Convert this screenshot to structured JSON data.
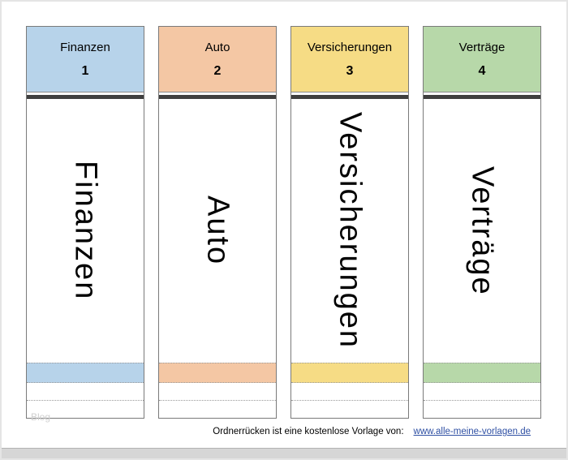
{
  "page": {
    "watermark": "Blog",
    "footer": {
      "text": "Ordnerrücken ist eine kostenlose Vorlage von:",
      "link": "www.alle-meine-vorlagen.de"
    }
  },
  "labels": [
    {
      "name": "Finanzen",
      "number": "1",
      "color": "#b7d3ea"
    },
    {
      "name": "Auto",
      "number": "2",
      "color": "#f4c7a4"
    },
    {
      "name": "Versicherungen",
      "number": "3",
      "color": "#f6dc85"
    },
    {
      "name": "Verträge",
      "number": "4",
      "color": "#b7d8a9"
    }
  ]
}
